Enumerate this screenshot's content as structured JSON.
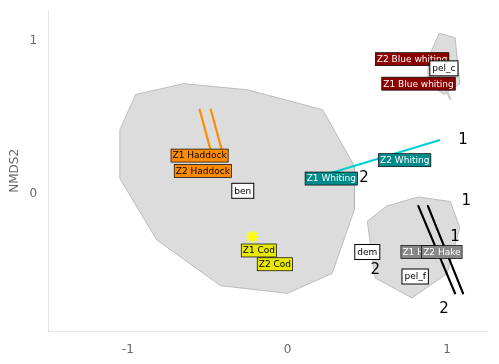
{
  "chart_data": {
    "type": "scatter",
    "ylabel": "NMDS2",
    "xlim": [
      -1.5,
      1.25
    ],
    "ylim": [
      -0.9,
      1.2
    ],
    "xticks": [
      -1,
      0,
      1
    ],
    "yticks": [
      0,
      1
    ],
    "grid": false,
    "series": [
      {
        "type": "polygon",
        "color": "#D0D0D0",
        "values": [
          [
            -0.95,
            0.65
          ],
          [
            -0.65,
            0.72
          ],
          [
            -0.25,
            0.68
          ],
          [
            0.22,
            0.55
          ],
          [
            0.42,
            0.18
          ],
          [
            0.42,
            -0.1
          ],
          [
            0.28,
            -0.52
          ],
          [
            0.0,
            -0.65
          ],
          [
            -0.42,
            -0.6
          ],
          [
            -0.82,
            -0.3
          ],
          [
            -1.05,
            0.1
          ],
          [
            -1.05,
            0.42
          ]
        ]
      },
      {
        "type": "polygon",
        "color": "#D0D0D0",
        "values": [
          [
            0.5,
            -0.18
          ],
          [
            0.62,
            -0.08
          ],
          [
            0.82,
            -0.02
          ],
          [
            1.02,
            -0.05
          ],
          [
            1.08,
            -0.22
          ],
          [
            1.0,
            -0.52
          ],
          [
            0.78,
            -0.68
          ],
          [
            0.55,
            -0.55
          ]
        ]
      },
      {
        "type": "polygon",
        "color": "#D0D0D0",
        "values": [
          [
            0.88,
            0.88
          ],
          [
            0.95,
            1.05
          ],
          [
            1.05,
            1.02
          ],
          [
            1.08,
            0.72
          ],
          [
            0.98,
            0.65
          ],
          [
            0.88,
            0.72
          ]
        ]
      },
      {
        "type": "line",
        "color": "#cccccc",
        "values": [
          [
            0.95,
            0.78
          ],
          [
            1.02,
            0.62
          ]
        ]
      },
      {
        "type": "line",
        "color": "#00CED1",
        "values": [
          [
            0.22,
            0.12
          ],
          [
            0.95,
            0.35
          ]
        ]
      },
      {
        "type": "line",
        "color": "#000000",
        "values": [
          [
            0.82,
            -0.08
          ],
          [
            1.05,
            -0.65
          ]
        ]
      },
      {
        "type": "line",
        "color": "#000000",
        "values": [
          [
            0.88,
            -0.08
          ],
          [
            1.1,
            -0.65
          ]
        ]
      },
      {
        "type": "line",
        "color": "#FF8C00",
        "values": [
          [
            -0.55,
            0.55
          ],
          [
            -0.48,
            0.28
          ]
        ]
      },
      {
        "type": "line",
        "color": "#FF8C00",
        "values": [
          [
            -0.48,
            0.55
          ],
          [
            -0.41,
            0.28
          ]
        ]
      },
      {
        "type": "scatter",
        "marker": "star",
        "color": "#FFFF00",
        "values": [
          [
            -0.22,
            -0.28
          ]
        ]
      }
    ],
    "annotations": [
      {
        "type": "tag",
        "text": "Z1 Haddock",
        "x": -0.72,
        "y": 0.25,
        "color": "#FF8C00"
      },
      {
        "type": "tag",
        "text": "Z2 Haddock",
        "x": -0.7,
        "y": 0.15,
        "color": "#FF8C00"
      },
      {
        "type": "tag",
        "text": "Z1 Cod",
        "x": -0.28,
        "y": -0.37,
        "color": "#E8E800"
      },
      {
        "type": "tag",
        "text": "Z2 Cod",
        "x": -0.18,
        "y": -0.46,
        "color": "#E8E800"
      },
      {
        "type": "tag",
        "text": "Z1 Whiting",
        "x": 0.12,
        "y": 0.1,
        "color": "#008B8B"
      },
      {
        "type": "tag",
        "text": "Z2 Whiting",
        "x": 0.58,
        "y": 0.22,
        "color": "#008B8B"
      },
      {
        "type": "tag",
        "text": "Z2 Blue whiting",
        "x": 0.56,
        "y": 0.88,
        "color": "#8B0000"
      },
      {
        "type": "tag",
        "text": "Z1 Blue whiting",
        "x": 0.6,
        "y": 0.72,
        "color": "#8B0000"
      },
      {
        "type": "tag",
        "text": "Z1 Hak",
        "x": 0.72,
        "y": -0.38,
        "color": "#888888"
      },
      {
        "type": "tag",
        "text": "Z2 Hake",
        "x": 0.85,
        "y": -0.38,
        "color": "#888888"
      },
      {
        "type": "box",
        "text": "ben",
        "x": -0.28,
        "y": 0.02,
        "color": "#ffffff"
      },
      {
        "type": "box",
        "text": "dem",
        "x": 0.5,
        "y": -0.38,
        "color": "#ffffff"
      },
      {
        "type": "box",
        "text": "pel_c",
        "x": 0.98,
        "y": 0.82,
        "color": "#ffffff"
      },
      {
        "type": "box",
        "text": "pel_f",
        "x": 0.8,
        "y": -0.54,
        "color": "#ffffff"
      },
      {
        "type": "text",
        "text": "1",
        "x": 1.1,
        "y": 0.35
      },
      {
        "type": "text",
        "text": "2",
        "x": 0.48,
        "y": 0.1
      },
      {
        "type": "text",
        "text": "1",
        "x": 1.12,
        "y": -0.05
      },
      {
        "type": "text",
        "text": "1",
        "x": 1.05,
        "y": -0.28
      },
      {
        "type": "text",
        "text": "2",
        "x": 0.55,
        "y": -0.5
      },
      {
        "type": "text",
        "text": "2",
        "x": 0.98,
        "y": -0.75
      }
    ]
  }
}
